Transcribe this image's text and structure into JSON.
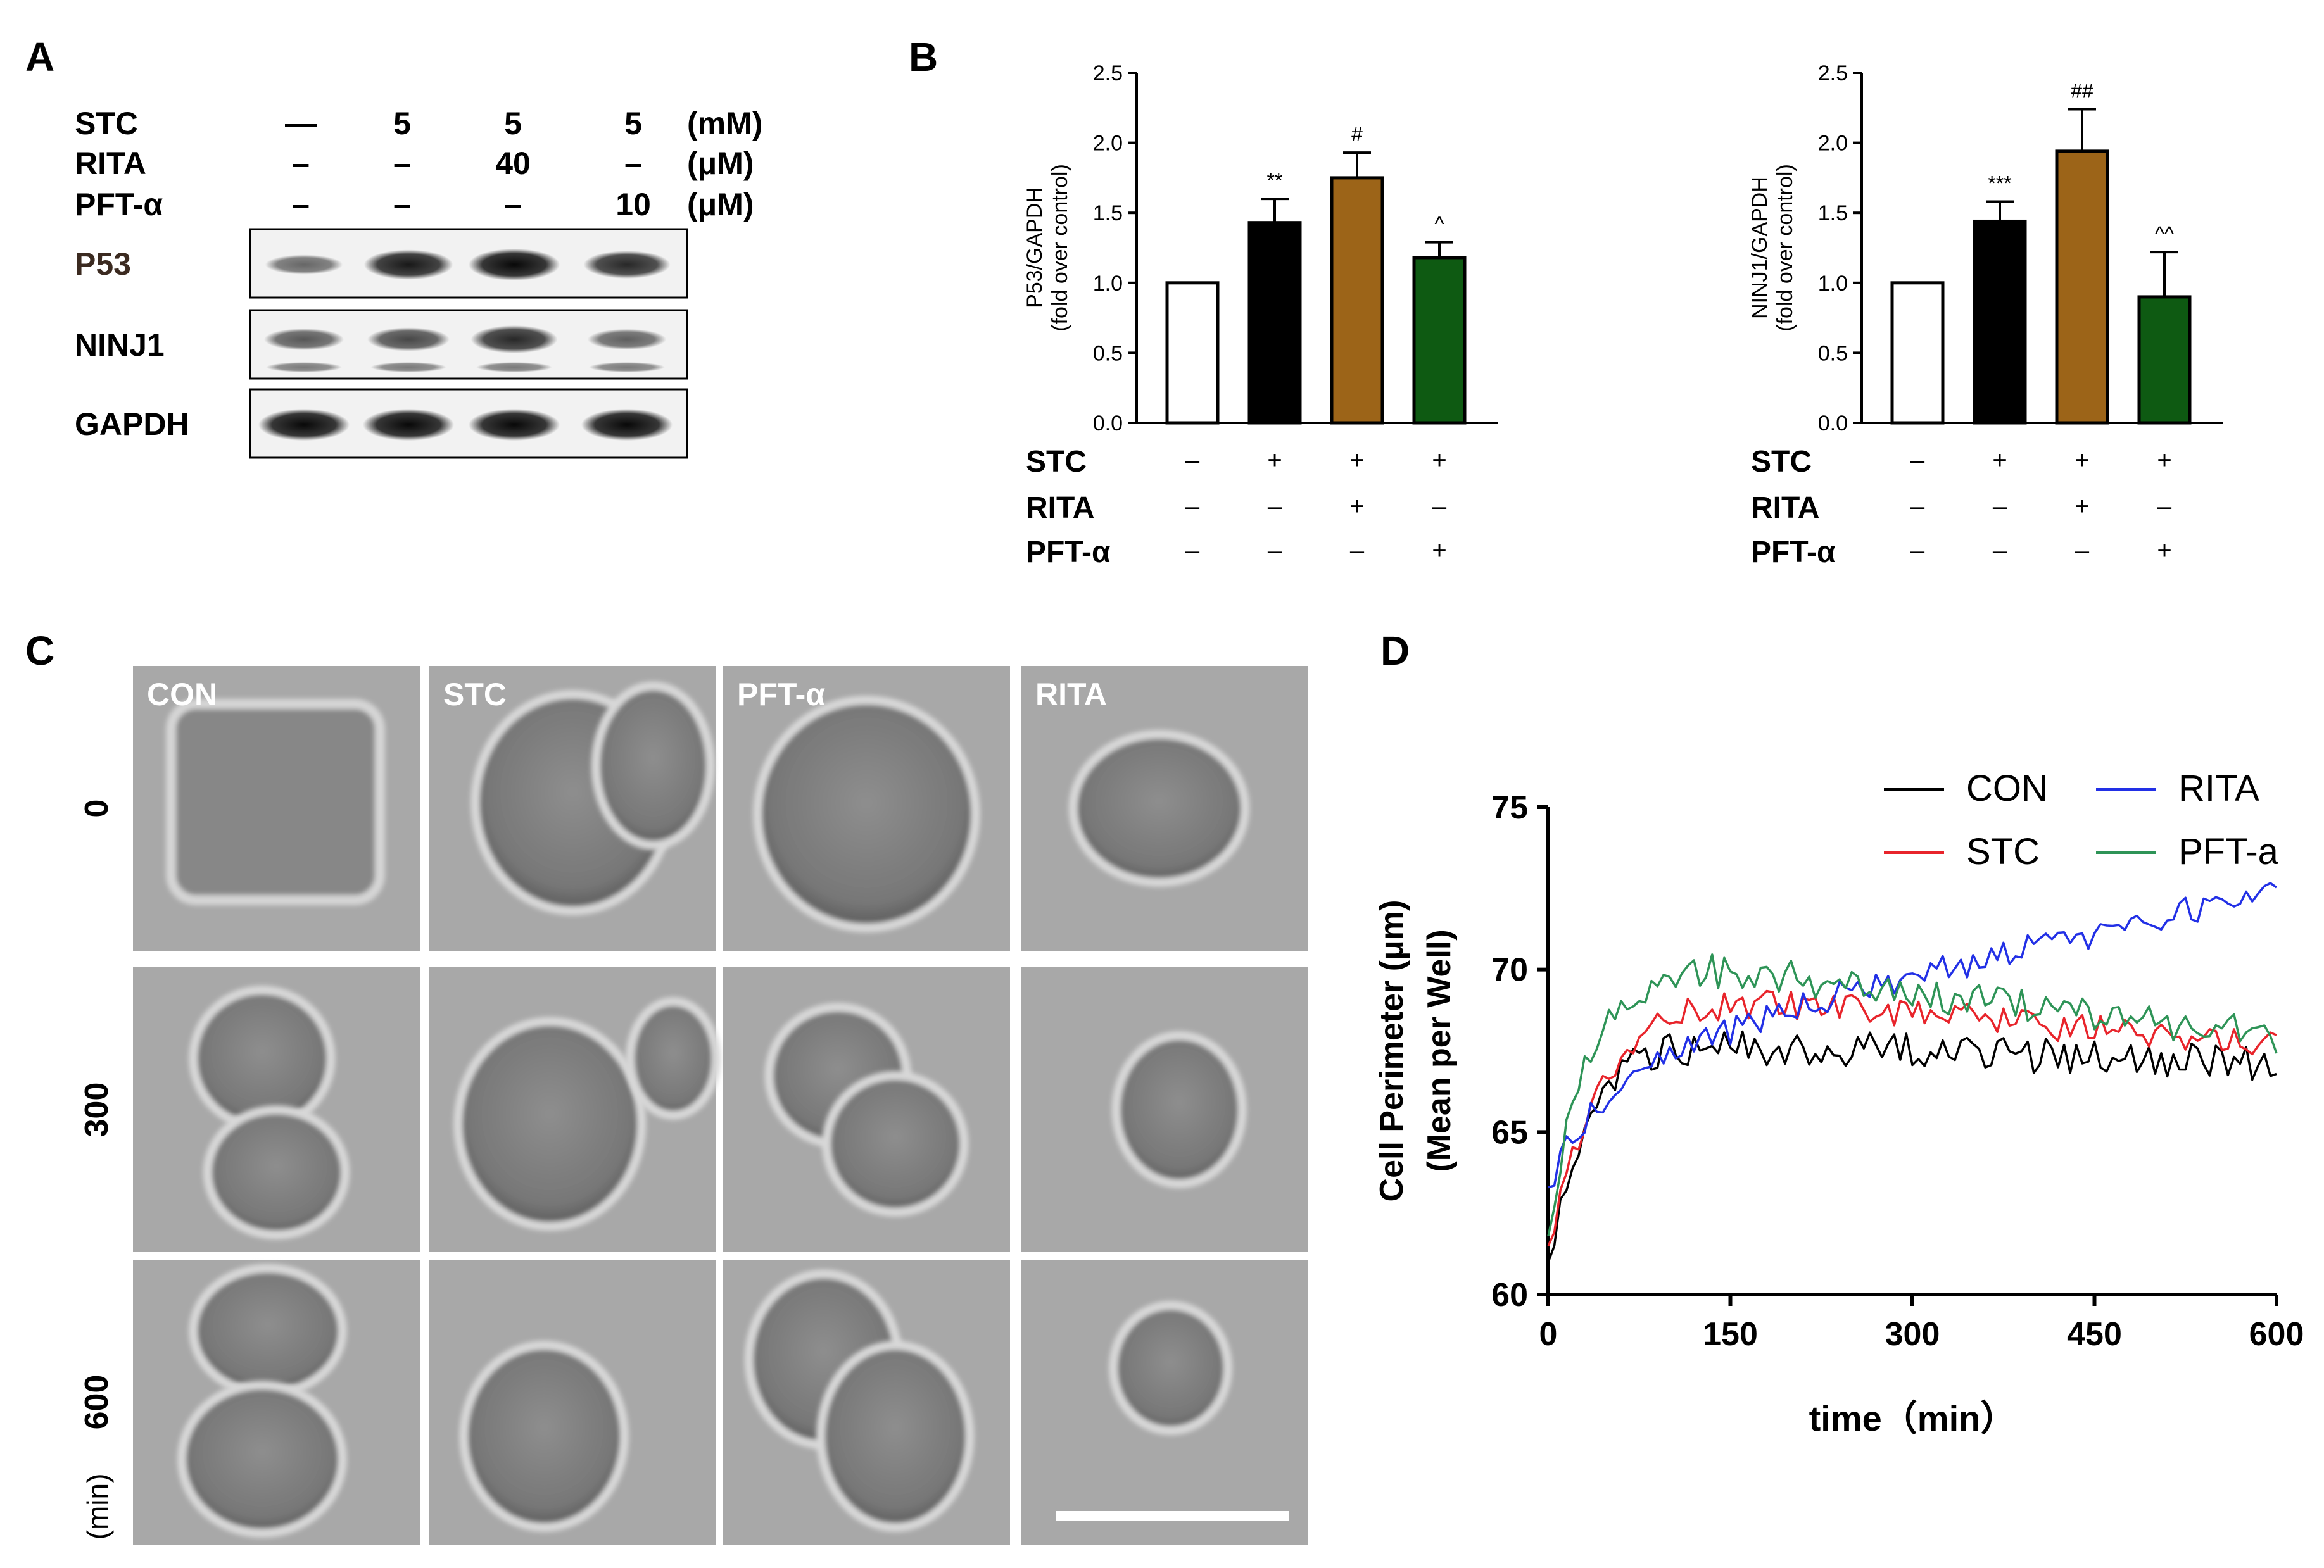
{
  "panels": {
    "A": "A",
    "B": "B",
    "C": "C",
    "D": "D"
  },
  "panel_a": {
    "treatments": [
      {
        "label": "STC",
        "values": [
          "—",
          "5",
          "5",
          "5"
        ],
        "unit": "(mM)"
      },
      {
        "label": "RITA",
        "values": [
          "–",
          "–",
          "40",
          "–"
        ],
        "unit": "(μM)"
      },
      {
        "label": "PFT-α",
        "values": [
          "–",
          "–",
          "–",
          "10"
        ],
        "unit": "(μM)"
      }
    ],
    "blots": [
      {
        "label": "P53",
        "intensity": [
          0.35,
          0.85,
          0.95,
          0.75
        ]
      },
      {
        "label": "NINJ1",
        "intensity": [
          0.45,
          0.55,
          0.75,
          0.4
        ]
      },
      {
        "label": "GAPDH",
        "intensity": [
          0.95,
          0.95,
          0.95,
          0.95
        ]
      }
    ]
  },
  "chart_data": [
    {
      "type": "bar",
      "ylabel": "P53/GAPDH",
      "ylabel2": "(fold over control)",
      "ylim": [
        0,
        2.5
      ],
      "yticks": [
        "0.0",
        "0.5",
        "1.0",
        "1.5",
        "2.0",
        "2.5"
      ],
      "values": [
        1.0,
        1.43,
        1.75,
        1.18
      ],
      "errors": [
        0,
        0.17,
        0.18,
        0.11
      ],
      "colors": [
        "#ffffff",
        "#000000",
        "#9c6418",
        "#0e5a12"
      ],
      "significance": [
        "",
        "**",
        "#",
        "^"
      ],
      "conditions": [
        {
          "label": "STC",
          "signs": [
            "–",
            "+",
            "+",
            "+"
          ]
        },
        {
          "label": "RITA",
          "signs": [
            "–",
            "–",
            "+",
            "–"
          ]
        },
        {
          "label": "PFT-α",
          "signs": [
            "–",
            "–",
            "–",
            "+"
          ]
        }
      ]
    },
    {
      "type": "bar",
      "ylabel": "NINJ1/GAPDH",
      "ylabel2": "(fold over control)",
      "ylim": [
        0,
        2.5
      ],
      "yticks": [
        "0.0",
        "0.5",
        "1.0",
        "1.5",
        "2.0",
        "2.5"
      ],
      "values": [
        1.0,
        1.44,
        1.94,
        0.9
      ],
      "errors": [
        0,
        0.14,
        0.3,
        0.32
      ],
      "colors": [
        "#ffffff",
        "#000000",
        "#9c6418",
        "#0e5a12"
      ],
      "significance": [
        "",
        "***",
        "##",
        "^^"
      ],
      "conditions": [
        {
          "label": "STC",
          "signs": [
            "–",
            "+",
            "+",
            "+"
          ]
        },
        {
          "label": "RITA",
          "signs": [
            "–",
            "–",
            "+",
            "–"
          ]
        },
        {
          "label": "PFT-α",
          "signs": [
            "–",
            "–",
            "–",
            "+"
          ]
        }
      ]
    },
    {
      "type": "line",
      "xlabel": "time（min）",
      "ylabel": "Cell Perimeter (μm)",
      "ylabel2": "(Mean per Well)",
      "xlim": [
        0,
        600
      ],
      "ylim": [
        60,
        75
      ],
      "xticks": [
        "0",
        "150",
        "300",
        "450",
        "600"
      ],
      "yticks": [
        "60",
        "65",
        "70",
        "75"
      ],
      "legend_position": "top-right",
      "series": [
        {
          "name": "CON",
          "color": "#000000",
          "start": 61.0,
          "plateau": 67.7,
          "tau": 30,
          "late_slope": -0.0012,
          "noise": 0.55,
          "seed": 3
        },
        {
          "name": "STC",
          "color": "#e8242b",
          "start": 61.5,
          "plateau": 69.3,
          "tau": 45,
          "late_slope": -0.0035,
          "noise": 0.45,
          "seed": 7
        },
        {
          "name": "RITA",
          "color": "#2230e6",
          "start": 63.3,
          "plateau": 68.2,
          "tau": 55,
          "late_slope": 0.0088,
          "noise": 0.45,
          "seed": 11
        },
        {
          "name": "PFT-a",
          "color": "#2e9457",
          "start": 61.8,
          "plateau": 70.1,
          "tau": 30,
          "late_slope": -0.0045,
          "noise": 0.55,
          "seed": 19
        }
      ]
    }
  ],
  "panel_c": {
    "columns": [
      "CON",
      "STC",
      "PFT-α",
      "RITA"
    ],
    "rows": [
      "0",
      "300",
      "600"
    ],
    "unit": "(min)"
  }
}
